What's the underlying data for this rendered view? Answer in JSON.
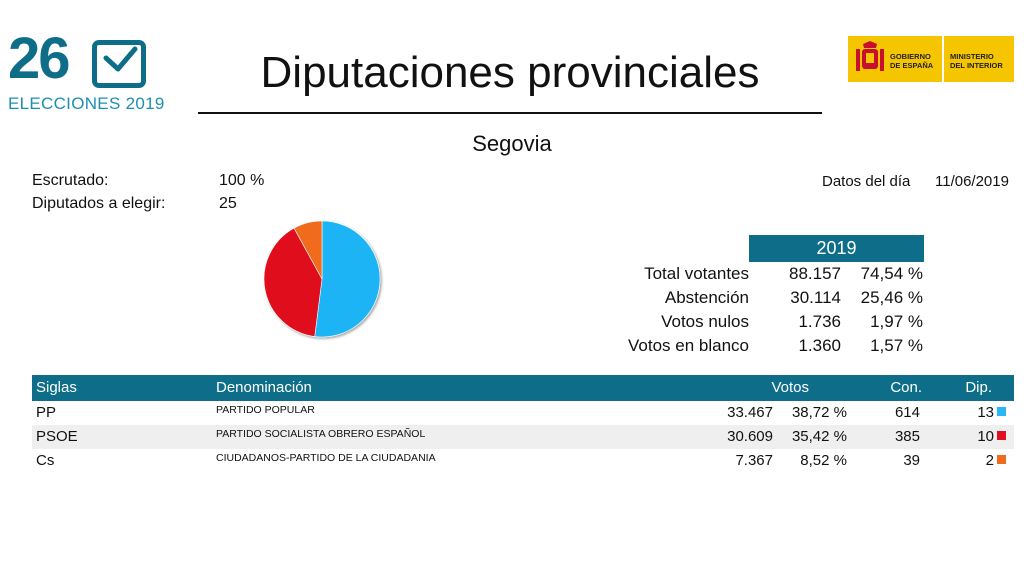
{
  "logo": {
    "number": "26",
    "subtitle": "ELECCIONES 2019"
  },
  "title": "Diputaciones provinciales",
  "government": {
    "left_text_1": "GOBIERNO",
    "left_text_2": "DE ESPAÑA",
    "right_text_1": "MINISTERIO",
    "right_text_2": "DEL INTERIOR"
  },
  "province": "Segovia",
  "info": {
    "escrutado_label": "Escrutado:",
    "escrutado_value": "100 %",
    "diputados_label": "Diputados a elegir:",
    "diputados_value": "25",
    "date_label": "Datos del día",
    "date_value": "11/06/2019"
  },
  "summary": {
    "year": "2019",
    "rows": [
      {
        "label": "Total votantes",
        "number": "88.157",
        "percent": "74,54 %"
      },
      {
        "label": "Abstención",
        "number": "30.114",
        "percent": "25,46 %"
      },
      {
        "label": "Votos nulos",
        "number": "1.736",
        "percent": "1,97 %"
      },
      {
        "label": "Votos en blanco",
        "number": "1.360",
        "percent": "1,57 %"
      }
    ]
  },
  "parties_table": {
    "headers": {
      "siglas": "Siglas",
      "denominacion": "Denominación",
      "votos": "Votos",
      "con": "Con.",
      "dip": "Dip."
    },
    "rows": [
      {
        "siglas": "PP",
        "denominacion": "PARTIDO POPULAR",
        "votos": "33.467",
        "percent": "38,72 %",
        "con": "614",
        "dip": "13",
        "color": "#29b6f6"
      },
      {
        "siglas": "PSOE",
        "denominacion": "PARTIDO SOCIALISTA OBRERO ESPAÑOL",
        "votos": "30.609",
        "percent": "35,42 %",
        "con": "385",
        "dip": "10",
        "color": "#e0101c"
      },
      {
        "siglas": "Cs",
        "denominacion": "CIUDADANOS-PARTIDO DE LA CIUDADANIA",
        "votos": "7.367",
        "percent": "8,52 %",
        "con": "39",
        "dip": "2",
        "color": "#f06c1c"
      }
    ]
  },
  "chart_data": {
    "type": "pie",
    "title": "",
    "categories": [
      "PP",
      "PSOE",
      "Cs"
    ],
    "values": [
      13,
      10,
      2
    ],
    "colors": [
      "#1fb4f5",
      "#e0101c",
      "#f06c1c"
    ]
  }
}
